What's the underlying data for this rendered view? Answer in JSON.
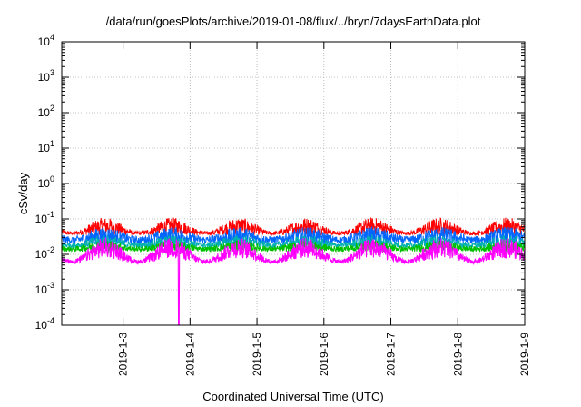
{
  "chart_data": {
    "type": "line",
    "title": "/data/run/goesPlots/archive/2019-01-08/flux/../bryn/7daysEarthData.plot",
    "xlabel": "Coordinated Universal Time (UTC)",
    "ylabel": "cSv/day",
    "y_scale": "log",
    "ylim": [
      0.0001,
      10000
    ],
    "xlim": [
      "2019-01-02T02:00",
      "2019-01-09T00:00"
    ],
    "grid": true,
    "legend": "none",
    "y_ticks": [
      {
        "base": "10",
        "exp": "-4",
        "value": 0.0001
      },
      {
        "base": "10",
        "exp": "-3",
        "value": 0.001
      },
      {
        "base": "10",
        "exp": "-2",
        "value": 0.01
      },
      {
        "base": "10",
        "exp": "-1",
        "value": 0.1
      },
      {
        "base": "10",
        "exp": "0",
        "value": 1
      },
      {
        "base": "10",
        "exp": "1",
        "value": 10
      },
      {
        "base": "10",
        "exp": "2",
        "value": 100
      },
      {
        "base": "10",
        "exp": "3",
        "value": 1000
      },
      {
        "base": "10",
        "exp": "4",
        "value": 10000
      }
    ],
    "x_ticks": [
      {
        "label": "2019-1-3",
        "value": "2019-01-03"
      },
      {
        "label": "2019-1-4",
        "value": "2019-01-04"
      },
      {
        "label": "2019-1-5",
        "value": "2019-01-05"
      },
      {
        "label": "2019-1-6",
        "value": "2019-01-06"
      },
      {
        "label": "2019-1-7",
        "value": "2019-01-07"
      },
      {
        "label": "2019-1-8",
        "value": "2019-01-08"
      },
      {
        "label": "2019-1-9",
        "value": "2019-01-09"
      }
    ],
    "series": [
      {
        "color": "#ff0000",
        "values_day_peaks": [
          [
            0.0,
            0.11
          ],
          [
            0.25,
            0.085
          ],
          [
            1.0,
            0.12
          ],
          [
            1.25,
            0.08
          ],
          [
            2.0,
            0.1
          ],
          [
            2.25,
            0.08
          ],
          [
            3.0,
            0.11
          ],
          [
            3.25,
            0.085
          ],
          [
            4.0,
            0.1
          ],
          [
            4.25,
            0.08
          ],
          [
            5.0,
            0.12
          ],
          [
            5.25,
            0.08
          ],
          [
            6.0,
            0.1
          ],
          [
            6.25,
            0.08
          ],
          [
            6.9,
            0.1
          ]
        ],
        "typical_min": 0.025
      },
      {
        "color": "#0066ff",
        "typical_max": 0.06,
        "typical_min": 0.02
      },
      {
        "color": "#00b0b0",
        "typical_max": 0.035,
        "typical_min": 0.015
      },
      {
        "color": "#00c000",
        "typical_max": 0.025,
        "typical_min": 0.012
      },
      {
        "color": "#ff00ff",
        "typical_max": 0.03,
        "typical_min": 0.005,
        "dropout": {
          "x": "2019-01-03T20:00",
          "y": 0.0001
        }
      }
    ]
  }
}
